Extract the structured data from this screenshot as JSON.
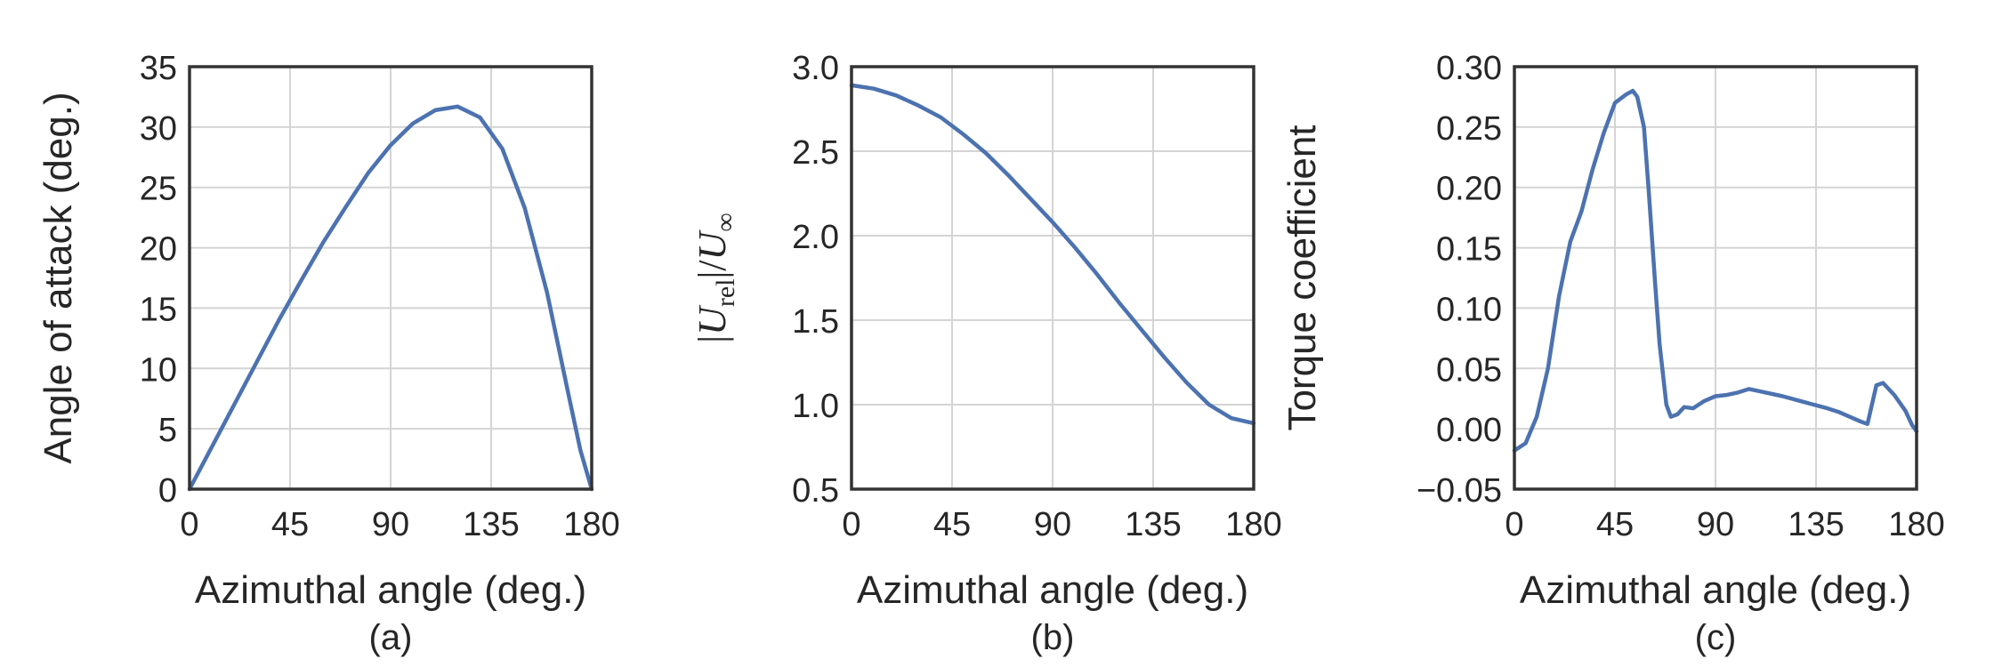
{
  "chart_data": [
    {
      "type": "line",
      "panel_label": "(a)",
      "xlabel": "Azimuthal angle (deg.)",
      "ylabel": "Angle of attack (deg.)",
      "xlim": [
        0,
        180
      ],
      "ylim": [
        0,
        35
      ],
      "xticks": [
        0,
        45,
        90,
        135,
        180
      ],
      "yticks": [
        0,
        5,
        10,
        15,
        20,
        25,
        30,
        35
      ],
      "grid": true,
      "color": "#4c72b0",
      "series": [
        {
          "x": [
            0,
            10,
            20,
            30,
            40,
            50,
            60,
            70,
            80,
            90,
            100,
            110,
            120,
            130,
            140,
            150,
            160,
            170,
            175,
            180
          ],
          "y": [
            0,
            3.5,
            7,
            10.5,
            14,
            17.3,
            20.5,
            23.4,
            26.2,
            28.5,
            30.3,
            31.4,
            31.7,
            30.8,
            28.2,
            23.3,
            16.3,
            7.5,
            3.2,
            0
          ]
        }
      ]
    },
    {
      "type": "line",
      "panel_label": "(b)",
      "xlabel": "Azimuthal angle (deg.)",
      "ylabel": "|U_rel|/U_∞",
      "ylabel_parts": {
        "bar": "|",
        "u": "U",
        "rel": "rel",
        "slash": "|/",
        "inf_u": "U",
        "inf": "∞"
      },
      "xlim": [
        0,
        180
      ],
      "ylim": [
        0.5,
        3.0
      ],
      "xticks": [
        0,
        45,
        90,
        135,
        180
      ],
      "yticks": [
        "0.5",
        "1.0",
        "1.5",
        "2.0",
        "2.5",
        "3.0"
      ],
      "grid": true,
      "color": "#4c72b0",
      "series": [
        {
          "x": [
            0,
            10,
            20,
            30,
            40,
            50,
            60,
            70,
            80,
            90,
            100,
            110,
            120,
            130,
            140,
            150,
            160,
            170,
            180
          ],
          "y": [
            2.89,
            2.87,
            2.83,
            2.77,
            2.7,
            2.6,
            2.49,
            2.36,
            2.22,
            2.08,
            1.93,
            1.77,
            1.6,
            1.44,
            1.28,
            1.13,
            1.0,
            0.92,
            0.89
          ]
        }
      ]
    },
    {
      "type": "line",
      "panel_label": "(c)",
      "xlabel": "Azimuthal angle (deg.)",
      "ylabel": "Torque coefficient",
      "xlim": [
        0,
        180
      ],
      "ylim": [
        -0.05,
        0.3
      ],
      "xticks": [
        0,
        45,
        90,
        135,
        180
      ],
      "yticks": [
        "−0.05",
        "0.00",
        "0.05",
        "0.10",
        "0.15",
        "0.20",
        "0.25",
        "0.30"
      ],
      "ytick_values": [
        -0.05,
        0,
        0.05,
        0.1,
        0.15,
        0.2,
        0.25,
        0.3
      ],
      "grid": true,
      "color": "#4c72b0",
      "series": [
        {
          "x": [
            0,
            5,
            10,
            15,
            20,
            25,
            30,
            35,
            40,
            45,
            50,
            53,
            55,
            58,
            60,
            63,
            65,
            68,
            70,
            73,
            76,
            80,
            85,
            90,
            95,
            100,
            105,
            110,
            120,
            130,
            140,
            145,
            150,
            155,
            158,
            160,
            162,
            165,
            170,
            175,
            178,
            180
          ],
          "y": [
            -0.018,
            -0.012,
            0.01,
            0.05,
            0.11,
            0.155,
            0.18,
            0.215,
            0.245,
            0.27,
            0.277,
            0.28,
            0.275,
            0.25,
            0.2,
            0.12,
            0.07,
            0.02,
            0.01,
            0.012,
            0.018,
            0.017,
            0.023,
            0.027,
            0.028,
            0.03,
            0.033,
            0.031,
            0.027,
            0.022,
            0.017,
            0.014,
            0.01,
            0.006,
            0.004,
            0.02,
            0.036,
            0.038,
            0.028,
            0.015,
            0.003,
            -0.002
          ]
        }
      ]
    }
  ]
}
